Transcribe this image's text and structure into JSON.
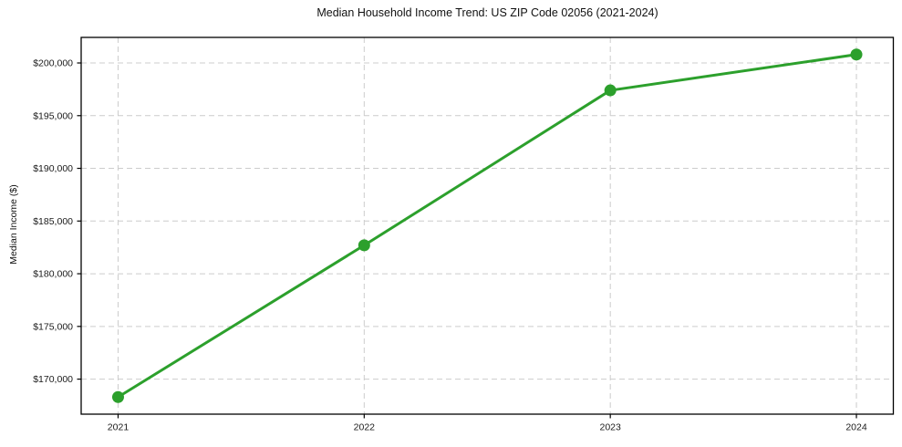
{
  "figure": {
    "background": "#ffffff"
  },
  "chart_data": {
    "type": "line",
    "title": "Median Household Income Trend: US ZIP Code 02056 (2021-2024)",
    "xlabel": "",
    "ylabel": "Median Income ($)",
    "x": [
      2021,
      2022,
      2023,
      2024
    ],
    "x_tick_labels": [
      "2021",
      "2022",
      "2023",
      "2024"
    ],
    "series": [
      {
        "name": "Median Household Income",
        "values": [
          168300,
          182700,
          197400,
          200800
        ],
        "color": "#2ca02c",
        "line_width": 3,
        "marker": "circle",
        "marker_radius": 6.5
      }
    ],
    "y_ticks": [
      170000,
      175000,
      180000,
      185000,
      190000,
      195000,
      200000
    ],
    "y_tick_labels": [
      "$170,000",
      "$175,000",
      "$180,000",
      "$185,000",
      "$190,000",
      "$195,000",
      "$200,000"
    ],
    "ylim": [
      166675,
      202425
    ],
    "xlim": [
      2020.85,
      2024.15
    ],
    "grid": true,
    "grid_color": "#cccccc",
    "grid_style": "dashed",
    "axes_box": true,
    "legend": "none",
    "text_color": "#1a1a1a",
    "spine_color": "#000000"
  }
}
